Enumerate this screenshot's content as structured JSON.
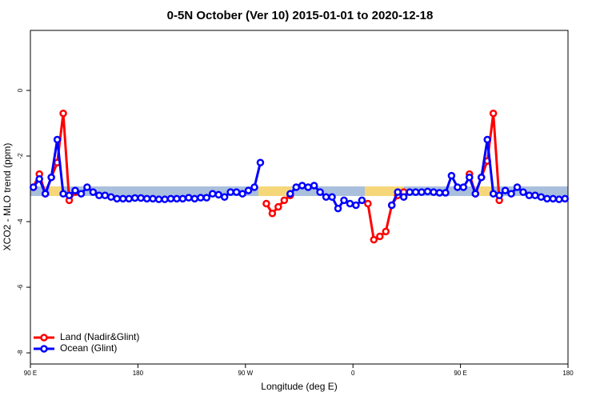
{
  "chart_data": {
    "type": "line",
    "title": "0-5N October (Ver 10)   2015-01-01 to 2020-12-18",
    "x_label": "Longitude (deg E)",
    "y_label": "XCO2 - MLO trend (ppm)",
    "xlim": [
      90,
      540
    ],
    "ylim": [
      -8.34,
      1.83
    ],
    "xticks": [
      {
        "value": 90,
        "label": "90 E"
      },
      {
        "value": 180,
        "label": "180"
      },
      {
        "value": 270,
        "label": "90 W"
      },
      {
        "value": 360,
        "label": "0"
      },
      {
        "value": 450,
        "label": "90 E"
      },
      {
        "value": 540,
        "label": "180"
      }
    ],
    "yticks": [
      0,
      -2,
      -4,
      -6,
      -8
    ],
    "legend": "bottom-left",
    "x": [
      92.5,
      97.5,
      102.5,
      107.5,
      112.5,
      117.5,
      122.5,
      127.5,
      132.5,
      137.5,
      142.5,
      147.5,
      152.5,
      157.5,
      162.5,
      167.5,
      172.5,
      177.5,
      182.5,
      187.5,
      192.5,
      197.5,
      202.5,
      207.5,
      212.5,
      217.5,
      222.5,
      227.5,
      232.5,
      237.5,
      242.5,
      247.5,
      252.5,
      257.5,
      262.5,
      267.5,
      272.5,
      277.5,
      282.5,
      287.5,
      292.5,
      297.5,
      302.5,
      307.5,
      312.5,
      317.5,
      322.5,
      327.5,
      332.5,
      337.5,
      342.5,
      347.5,
      352.5,
      357.5,
      362.5,
      367.5,
      372.5,
      377.5,
      382.5,
      387.5,
      392.5,
      397.5,
      402.5,
      407.5,
      412.5,
      417.5,
      422.5,
      427.5,
      432.5,
      437.5,
      442.5,
      447.5,
      452.5,
      457.5,
      462.5,
      467.5,
      472.5,
      477.5,
      482.5,
      487.5,
      492.5,
      497.5,
      502.5,
      507.5,
      512.5,
      517.5,
      522.5,
      527.5,
      532.5,
      537.5
    ],
    "series": [
      {
        "name": "Land (Nadir&Glint)",
        "color": "#ff0000",
        "values": [
          -2.95,
          -2.55,
          -3.15,
          -2.65,
          -2.2,
          -0.7,
          -3.35,
          -3.1,
          null,
          null,
          null,
          null,
          null,
          null,
          null,
          null,
          null,
          null,
          null,
          null,
          null,
          null,
          null,
          null,
          null,
          null,
          null,
          null,
          null,
          null,
          null,
          null,
          null,
          null,
          null,
          null,
          null,
          null,
          null,
          -3.45,
          -3.75,
          -3.55,
          -3.35,
          -3.2,
          null,
          null,
          null,
          null,
          null,
          null,
          null,
          null,
          null,
          null,
          null,
          null,
          -3.45,
          -4.55,
          -4.45,
          -4.3,
          -3.5,
          -3.2,
          -3.1,
          null,
          null,
          null,
          null,
          null,
          null,
          null,
          null,
          null,
          null,
          -2.55,
          -3.15,
          -2.65,
          -2.15,
          -0.7,
          -3.35,
          null,
          null,
          null,
          null,
          null,
          null,
          null,
          null,
          null,
          null,
          null
        ]
      },
      {
        "name": "Ocean (Glint)",
        "color": "#0000ff",
        "values": [
          -2.95,
          -2.7,
          -3.15,
          -2.65,
          -1.5,
          -3.15,
          -3.2,
          -3.05,
          -3.15,
          -2.95,
          -3.1,
          -3.2,
          -3.2,
          -3.25,
          -3.3,
          -3.3,
          -3.3,
          -3.28,
          -3.28,
          -3.3,
          -3.3,
          -3.32,
          -3.32,
          -3.3,
          -3.3,
          -3.3,
          -3.27,
          -3.3,
          -3.27,
          -3.27,
          -3.15,
          -3.18,
          -3.25,
          -3.1,
          -3.1,
          -3.15,
          -3.05,
          -2.95,
          -2.2,
          null,
          null,
          null,
          null,
          -3.15,
          -2.95,
          -2.9,
          -2.95,
          -2.9,
          -3.1,
          -3.25,
          -3.25,
          -3.6,
          -3.35,
          -3.45,
          -3.5,
          -3.35,
          null,
          null,
          null,
          null,
          -3.5,
          -3.1,
          -3.25,
          -3.1,
          -3.1,
          -3.1,
          -3.08,
          -3.1,
          -3.12,
          -3.12,
          -2.6,
          -2.95,
          -2.95,
          -2.65,
          -3.15,
          -2.65,
          -1.5,
          -3.15,
          -3.2,
          -3.05,
          -3.15,
          -2.95,
          -3.1,
          -3.2,
          -3.2,
          -3.25,
          -3.3,
          -3.3,
          -3.32,
          -3.3
        ]
      }
    ]
  }
}
